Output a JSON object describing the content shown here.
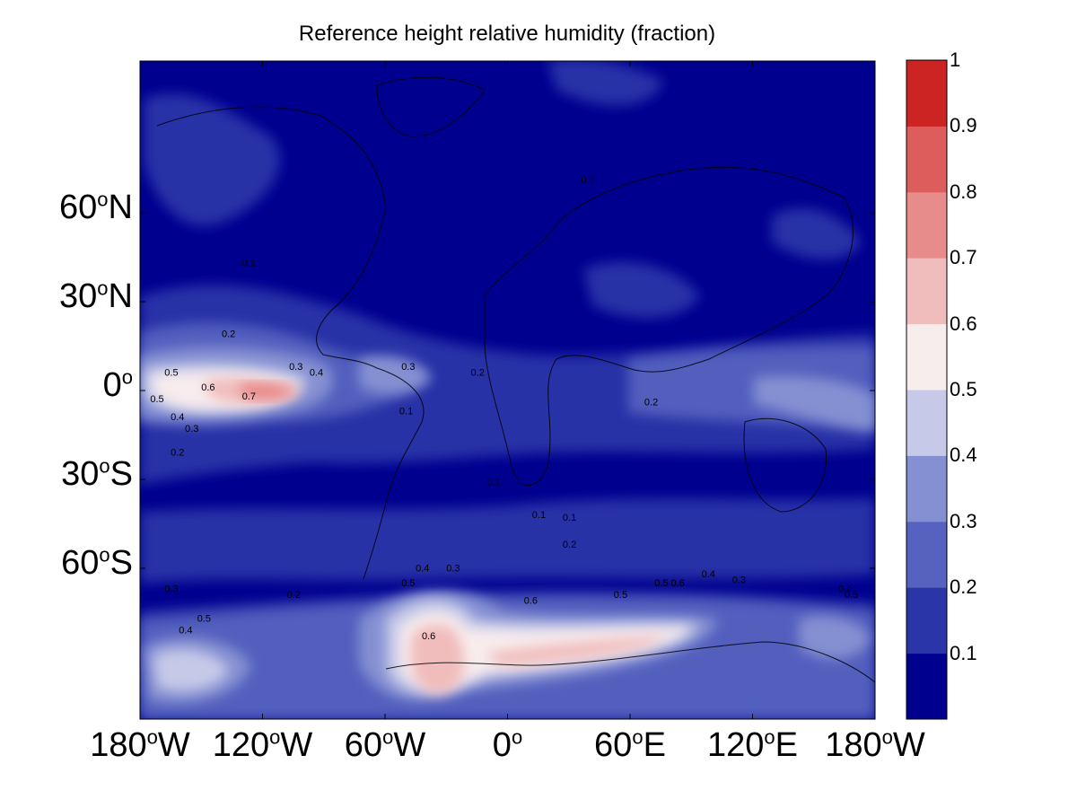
{
  "title": "Reference height relative humidity (fraction)",
  "map": {
    "y_ticks": [
      {
        "deg": "60",
        "hemi": "N",
        "lat": 60
      },
      {
        "deg": "30",
        "hemi": "N",
        "lat": 30
      },
      {
        "deg": "0",
        "hemi": "",
        "lat": 0
      },
      {
        "deg": "30",
        "hemi": "S",
        "lat": -30
      },
      {
        "deg": "60",
        "hemi": "S",
        "lat": -60
      }
    ],
    "x_ticks": [
      {
        "deg": "180",
        "hemi": "W",
        "lon": -180
      },
      {
        "deg": "120",
        "hemi": "W",
        "lon": -120
      },
      {
        "deg": "60",
        "hemi": "W",
        "lon": -60
      },
      {
        "deg": "0",
        "hemi": "",
        "lon": 0
      },
      {
        "deg": "60",
        "hemi": "E",
        "lon": 60
      },
      {
        "deg": "120",
        "hemi": "E",
        "lon": 120
      },
      {
        "deg": "180",
        "hemi": "W",
        "lon": 180
      }
    ],
    "contour_labels": [
      {
        "text": "0.5",
        "lon": -168,
        "lat": 5
      },
      {
        "text": "0.6",
        "lon": -150,
        "lat": 0
      },
      {
        "text": "0.7",
        "lon": -130,
        "lat": -3
      },
      {
        "text": "0.5",
        "lon": -175,
        "lat": -4
      },
      {
        "text": "0.4",
        "lon": -165,
        "lat": -10
      },
      {
        "text": "0.3",
        "lon": -158,
        "lat": -14
      },
      {
        "text": "0.2",
        "lon": -165,
        "lat": -22
      },
      {
        "text": "0.2",
        "lon": -140,
        "lat": 18
      },
      {
        "text": "0.3",
        "lon": -107,
        "lat": 7
      },
      {
        "text": "0.4",
        "lon": -97,
        "lat": 5
      },
      {
        "text": "0.3",
        "lon": -52,
        "lat": 7
      },
      {
        "text": "0.1",
        "lon": -53,
        "lat": -8
      },
      {
        "text": "0.2",
        "lon": -18,
        "lat": 5
      },
      {
        "text": "0.2",
        "lon": 67,
        "lat": -5
      },
      {
        "text": "0.1",
        "lon": -10,
        "lat": -32
      },
      {
        "text": "0.1",
        "lon": 12,
        "lat": -43
      },
      {
        "text": "0.1",
        "lon": 27,
        "lat": -44
      },
      {
        "text": "0.2",
        "lon": 27,
        "lat": -53
      },
      {
        "text": "0.4",
        "lon": -45,
        "lat": -61
      },
      {
        "text": "0.3",
        "lon": -30,
        "lat": -61
      },
      {
        "text": "0.5",
        "lon": -52,
        "lat": -66
      },
      {
        "text": "0.6",
        "lon": 8,
        "lat": -72
      },
      {
        "text": "0.6",
        "lon": -42,
        "lat": -84
      },
      {
        "text": "0.5",
        "lon": 72,
        "lat": -66
      },
      {
        "text": "0.6",
        "lon": 80,
        "lat": -66
      },
      {
        "text": "0.4",
        "lon": 95,
        "lat": -63
      },
      {
        "text": "0.3",
        "lon": 110,
        "lat": -65
      },
      {
        "text": "0.5",
        "lon": 52,
        "lat": -70
      },
      {
        "text": "0.4",
        "lon": 162,
        "lat": -68
      },
      {
        "text": "0.5",
        "lon": 165,
        "lat": -70
      },
      {
        "text": "0.3",
        "lon": -168,
        "lat": -68
      },
      {
        "text": "0.2",
        "lon": -108,
        "lat": -70
      },
      {
        "text": "0.5",
        "lon": -152,
        "lat": -78
      },
      {
        "text": "0.4",
        "lon": -161,
        "lat": -82
      },
      {
        "text": "0.1",
        "lon": -130,
        "lat": 42
      },
      {
        "text": "0.3",
        "lon": 36,
        "lat": 70
      }
    ]
  },
  "colorbar": {
    "labels": [
      "0.1",
      "0.2",
      "0.3",
      "0.4",
      "0.5",
      "0.6",
      "0.7",
      "0.8",
      "0.9",
      "1"
    ],
    "colors": [
      "#00008f",
      "#2a36a8",
      "#5562bf",
      "#8590d2",
      "#c6c9e8",
      "#f8eded",
      "#f1bcbc",
      "#e88b8b",
      "#dd5c5c",
      "#cc2323"
    ]
  }
}
